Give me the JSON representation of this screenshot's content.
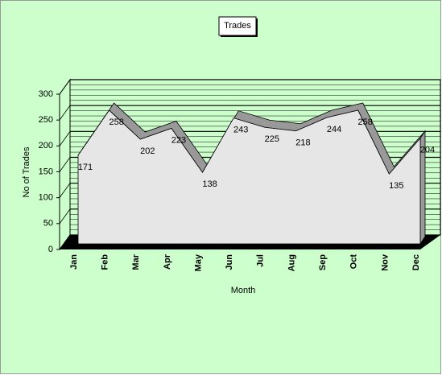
{
  "chart_data": {
    "type": "area3d",
    "title": "Trades",
    "x_label": "Month",
    "y_label": "No of Trades",
    "categories": [
      "Jan",
      "Feb",
      "Mar",
      "Apr",
      "May",
      "Jun",
      "Jul",
      "Aug",
      "Sep",
      "Oct",
      "Nov",
      "Dec"
    ],
    "values": [
      171,
      258,
      202,
      223,
      138,
      243,
      225,
      218,
      244,
      258,
      135,
      204
    ],
    "color": "#e6e6e6",
    "ylim": [
      0,
      300
    ],
    "yticks": [
      0,
      50,
      100,
      150,
      200,
      250,
      300
    ],
    "grid": true
  }
}
